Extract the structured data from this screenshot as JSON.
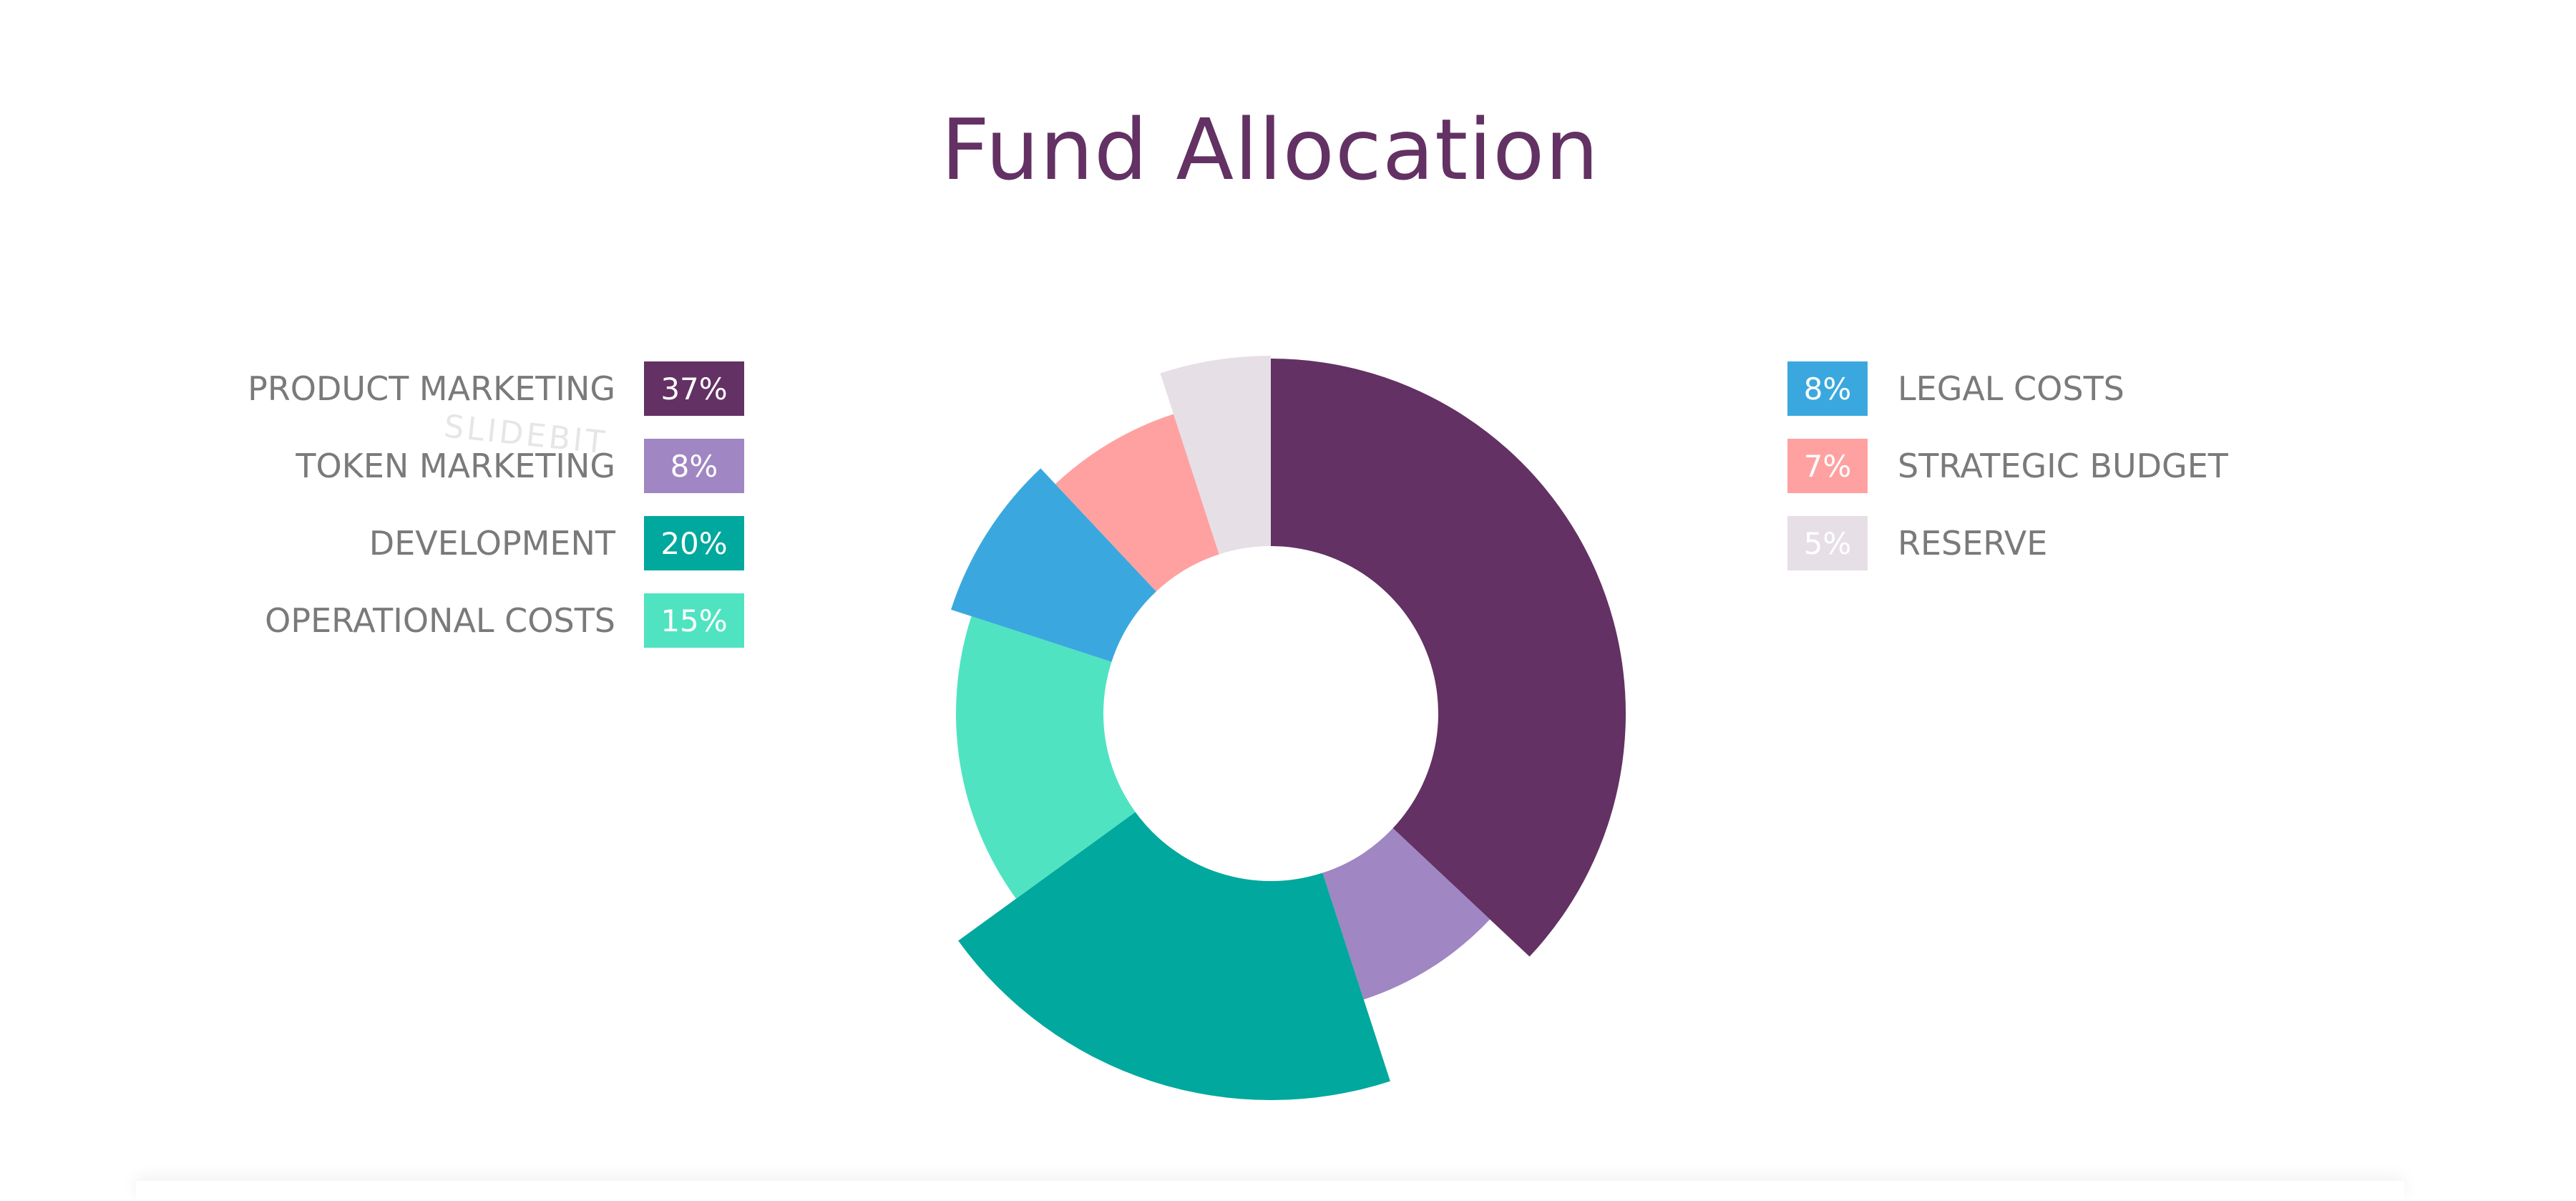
{
  "chart_data": {
    "type": "pie",
    "style": "donut",
    "title": "Fund Allocation",
    "slices": [
      {
        "label": "PRODUCT MARKETING",
        "value": 37,
        "display": "37%",
        "color": "#633163",
        "text_color": "#ffffff",
        "legend": "left"
      },
      {
        "label": "TOKEN MARKETING",
        "value": 8,
        "display": "8%",
        "color": "#a086c3",
        "text_color": "#ffffff",
        "legend": "left"
      },
      {
        "label": "DEVELOPMENT",
        "value": 20,
        "display": "20%",
        "color": "#00a89d",
        "text_color": "#ffffff",
        "legend": "left"
      },
      {
        "label": "OPERATIONAL COSTS",
        "value": 15,
        "display": "15%",
        "color": "#50e3c2",
        "text_color": "#ffffff",
        "legend": "left"
      },
      {
        "label": "LEGAL COSTS",
        "value": 8,
        "display": "8%",
        "color": "#3aa8de",
        "text_color": "#ffffff",
        "legend": "right"
      },
      {
        "label": "STRATEGIC BUDGET",
        "value": 7,
        "display": "7%",
        "color": "#ffa1a1",
        "text_color": "#ffffff",
        "legend": "right"
      },
      {
        "label": "RESERVE",
        "value": 5,
        "display": "5%",
        "color": "#e6dfe6",
        "text_color": "#ffffff",
        "legend": "right"
      }
    ]
  },
  "watermark": "SLIDEBIT"
}
